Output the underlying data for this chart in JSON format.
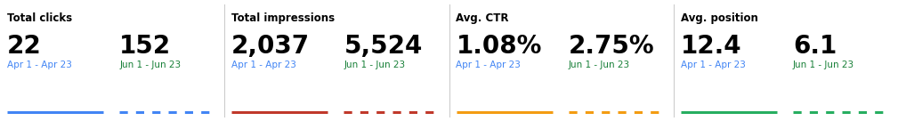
{
  "sections": [
    {
      "title": "Total clicks",
      "metrics": [
        {
          "value": "22",
          "label": "Apr 1 - Apr 23",
          "line_color": "#4285f4",
          "dashed": false,
          "label_color": "#4285f4"
        },
        {
          "value": "152",
          "label": "Jun 1 - Jun 23",
          "line_color": "#4285f4",
          "dashed": true,
          "label_color": "#188038"
        }
      ]
    },
    {
      "title": "Total impressions",
      "metrics": [
        {
          "value": "2,037",
          "label": "Apr 1 - Apr 23",
          "line_color": "#c0392b",
          "dashed": false,
          "label_color": "#4285f4"
        },
        {
          "value": "5,524",
          "label": "Jun 1 - Jun 23",
          "line_color": "#c0392b",
          "dashed": true,
          "label_color": "#188038"
        }
      ]
    },
    {
      "title": "Avg. CTR",
      "metrics": [
        {
          "value": "1.08%",
          "label": "Apr 1 - Apr 23",
          "line_color": "#f39c12",
          "dashed": false,
          "label_color": "#4285f4"
        },
        {
          "value": "2.75%",
          "label": "Jun 1 - Jun 23",
          "line_color": "#f39c12",
          "dashed": true,
          "label_color": "#188038"
        }
      ]
    },
    {
      "title": "Avg. position",
      "metrics": [
        {
          "value": "12.4",
          "label": "Apr 1 - Apr 23",
          "line_color": "#27ae60",
          "dashed": false,
          "label_color": "#4285f4"
        },
        {
          "value": "6.1",
          "label": "Jun 1 - Jun 23",
          "line_color": "#27ae60",
          "dashed": true,
          "label_color": "#188038"
        }
      ]
    }
  ],
  "bg_color": "#ffffff",
  "title_fontsize": 8.5,
  "value_fontsize": 20,
  "label_fontsize": 7.5,
  "divider_color": "#cccccc",
  "text_color": "#000000",
  "fig_width": 10.09,
  "fig_height": 1.36,
  "dpi": 100
}
